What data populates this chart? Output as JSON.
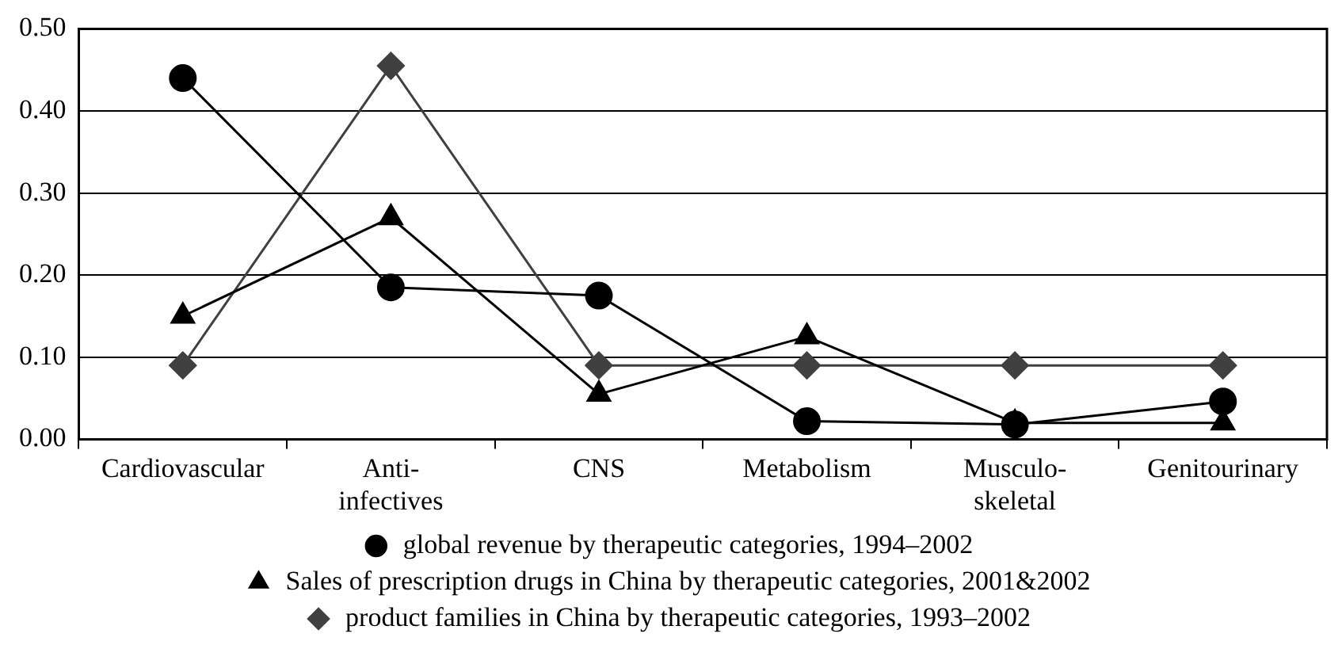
{
  "chart_data": {
    "type": "line",
    "categories": [
      "Cardiovascular",
      "Anti- infectives",
      "CNS",
      "Metabolism",
      "Musculo- skeletal",
      "Genitourinary"
    ],
    "series": [
      {
        "name": "global revenue by therapeutic categories, 1994–2002",
        "color": "#000000",
        "marker": "circle",
        "values": [
          0.44,
          0.185,
          0.175,
          0.022,
          0.018,
          0.046
        ]
      },
      {
        "name": "Sales of prescription drugs in China by therapeutic categories, 2001&2002",
        "color": "#000000",
        "marker": "triangle",
        "values": [
          0.15,
          0.27,
          0.055,
          0.125,
          0.02,
          0.02
        ]
      },
      {
        "name": "product families in China by therapeutic categories, 1993–2002",
        "color": "#404040",
        "marker": "diamond",
        "values": [
          0.09,
          0.455,
          0.09,
          0.09,
          0.09,
          0.09
        ]
      }
    ],
    "ylim": [
      0,
      0.5
    ],
    "yticks": [
      {
        "value": 0,
        "label": "0.00"
      },
      {
        "value": 0.1,
        "label": "0.10"
      },
      {
        "value": 0.2,
        "label": "0.20"
      },
      {
        "value": 0.3,
        "label": "0.30"
      },
      {
        "value": 0.4,
        "label": "0.40"
      },
      {
        "value": 0.5,
        "label": "0.50"
      }
    ],
    "grid": "y",
    "legend": "bottom"
  }
}
